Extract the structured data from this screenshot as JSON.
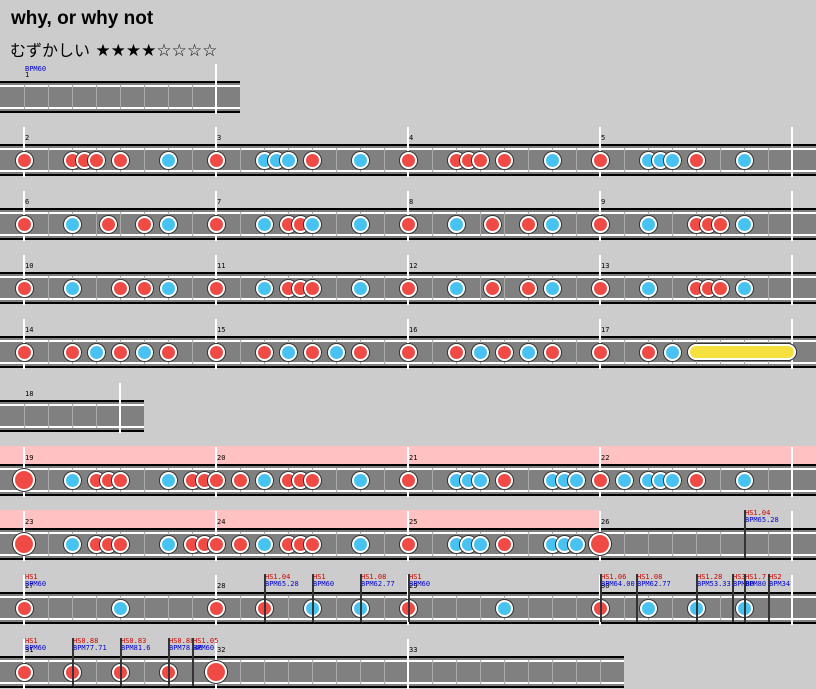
{
  "song": {
    "title": "why, or why not",
    "difficulty_label": "むずかしい",
    "stars": "★★★★☆☆☆☆",
    "stars_filled": 4,
    "stars_total": 8
  },
  "colors": {
    "don": "#f04a44",
    "ka": "#48c2f0",
    "roll": "#f5e13e",
    "gogo": "#ffc1c1",
    "lane": "#808080"
  },
  "rows": [
    {
      "measures": [
        {
          "num": "1",
          "label": "BPM60"
        }
      ]
    },
    {
      "measures": [
        {
          "num": "2"
        },
        {
          "num": "3"
        },
        {
          "num": "4"
        },
        {
          "num": "5"
        }
      ]
    },
    {
      "measures": [
        {
          "num": "6"
        },
        {
          "num": "7"
        },
        {
          "num": "8"
        },
        {
          "num": "9"
        }
      ]
    },
    {
      "measures": [
        {
          "num": "10"
        },
        {
          "num": "11"
        },
        {
          "num": "12"
        },
        {
          "num": "13"
        }
      ]
    },
    {
      "measures": [
        {
          "num": "14"
        },
        {
          "num": "15"
        },
        {
          "num": "16"
        },
        {
          "num": "17"
        }
      ]
    },
    {
      "measures": [
        {
          "num": "18"
        }
      ]
    },
    {
      "measures": [
        {
          "num": "19"
        },
        {
          "num": "20"
        },
        {
          "num": "21"
        },
        {
          "num": "22"
        }
      ]
    },
    {
      "measures": [
        {
          "num": "23"
        },
        {
          "num": "24"
        },
        {
          "num": "25"
        },
        {
          "num": "26"
        }
      ]
    },
    {
      "measures": [
        {
          "num": "27"
        },
        {
          "num": "28"
        },
        {
          "num": "29"
        },
        {
          "num": "30"
        }
      ]
    },
    {
      "measures": [
        {
          "num": "31"
        },
        {
          "num": "32"
        },
        {
          "num": "33"
        }
      ]
    }
  ],
  "events": [
    {
      "hs": "HS1.04",
      "bpm": "BPM65.28"
    },
    {
      "hs": "HS1",
      "bpm": "BPM60"
    },
    {
      "hs": "HS1.04",
      "bpm": "BPM65.28"
    },
    {
      "hs": "HS1",
      "bpm": "BPM60"
    },
    {
      "hs": "HS1.08",
      "bpm": "BPM62.77"
    },
    {
      "hs": "HS1",
      "bpm": "BPM60"
    },
    {
      "hs": "HS1.06",
      "bpm": "BPM64.00"
    },
    {
      "hs": "HS1.08",
      "bpm": "BPM62.77"
    },
    {
      "hs": "HS1.28",
      "bpm": "BPM53.33"
    },
    {
      "hs": "HS3",
      "bpm": "BPM80"
    },
    {
      "hs": "HS1.7",
      "bpm": "BPM80"
    },
    {
      "hs": "HS2",
      "bpm": "BPM34"
    },
    {
      "hs": "HS1",
      "bpm": "BPM60"
    },
    {
      "hs": "HS0.88",
      "bpm": "BPM77.71"
    },
    {
      "hs": "HS0.83",
      "bpm": "BPM81.6"
    },
    {
      "hs": "HS0.88",
      "bpm": "BPM78.46"
    },
    {
      "hs": "HS1.05",
      "bpm": "BPM60"
    }
  ]
}
